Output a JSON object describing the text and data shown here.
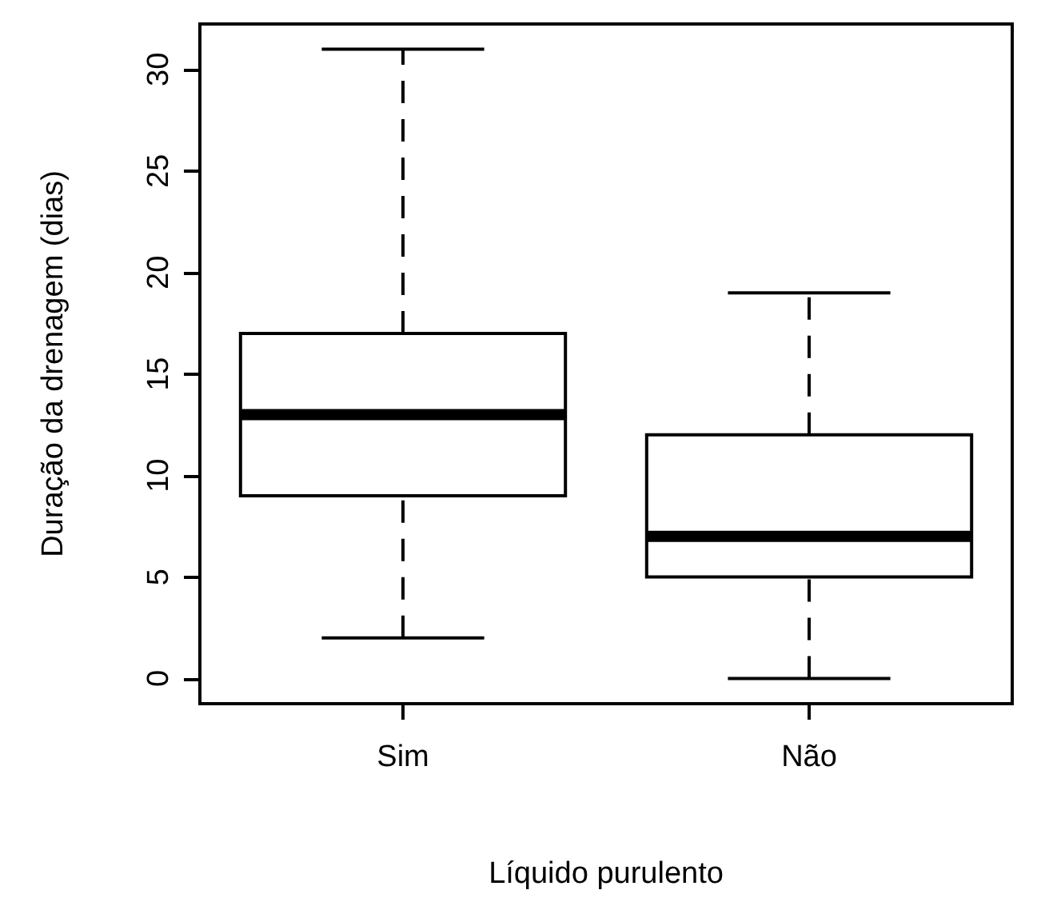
{
  "chart_data": {
    "type": "box",
    "xlabel": "Líquido purulento",
    "ylabel": "Duração da drenagem (dias)",
    "categories": [
      "Sim",
      "Não"
    ],
    "boxes": [
      {
        "low": 2,
        "q1": 9,
        "median": 13,
        "q3": 17,
        "high": 31
      },
      {
        "low": 0,
        "q1": 5,
        "median": 7,
        "q3": 12,
        "high": 19
      }
    ],
    "ylim": [
      -1.24,
      32.24
    ],
    "yticks": [
      0,
      5,
      10,
      15,
      20,
      25,
      30
    ],
    "grid": false
  }
}
